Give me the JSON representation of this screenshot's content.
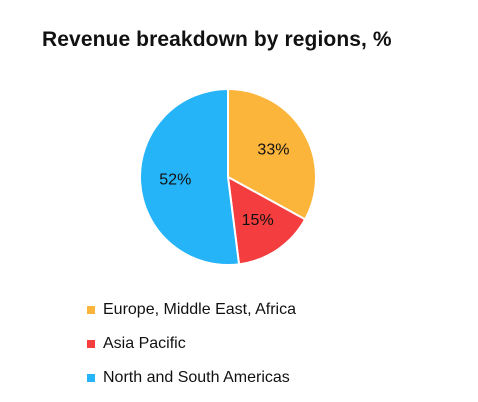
{
  "chart_data": {
    "type": "pie",
    "title": "Revenue breakdown by regions, %",
    "categories": [
      "Europe, Middle East, Africa",
      "Asia Pacific",
      "North and South Americas"
    ],
    "values": [
      33,
      15,
      52
    ],
    "data_labels": [
      "33%",
      "15%",
      "52%"
    ],
    "colors": [
      "#FCB53B",
      "#F33D3E",
      "#26B4F8"
    ],
    "legend_placement": "bottom-left",
    "start_angle_deg": 0,
    "direction": "clockwise"
  }
}
